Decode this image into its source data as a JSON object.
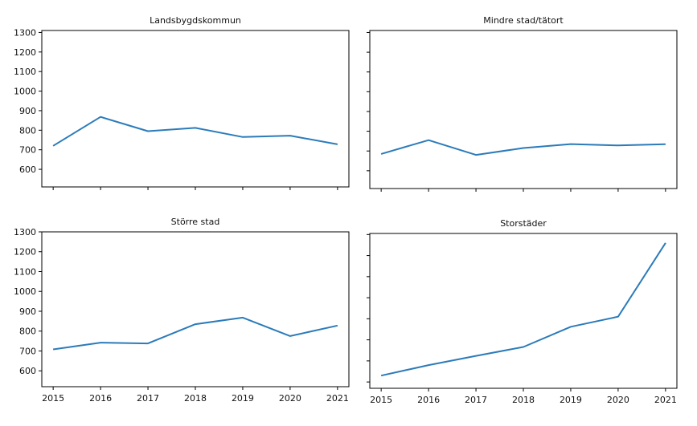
{
  "chart_data": [
    {
      "type": "line",
      "title": "Landsbygdskommun",
      "x": [
        2015,
        2016,
        2017,
        2018,
        2019,
        2020,
        2021
      ],
      "series": [
        {
          "values": [
            720,
            868,
            795,
            812,
            765,
            772,
            728
          ]
        }
      ],
      "yticks": [
        600,
        700,
        800,
        900,
        1000,
        1100,
        1200,
        1300
      ],
      "ylim": [
        510,
        1310
      ],
      "show_y_labels": true,
      "show_x_labels": false,
      "color": "#2b7bba"
    },
    {
      "type": "line",
      "title": "Mindre stad/tätort",
      "x": [
        2015,
        2016,
        2017,
        2018,
        2019,
        2020,
        2021
      ],
      "series": [
        {
          "values": [
            685,
            755,
            680,
            715,
            735,
            728,
            734
          ]
        }
      ],
      "yticks": [
        600,
        700,
        800,
        900,
        1000,
        1100,
        1200,
        1300
      ],
      "ylim": [
        510,
        1310
      ],
      "show_y_labels": false,
      "show_x_labels": false,
      "color": "#2b7bba"
    },
    {
      "type": "line",
      "title": "Större stad",
      "x": [
        2015,
        2016,
        2017,
        2018,
        2019,
        2020,
        2021
      ],
      "series": [
        {
          "values": [
            708,
            742,
            738,
            835,
            868,
            775,
            828
          ]
        }
      ],
      "yticks": [
        600,
        700,
        800,
        900,
        1000,
        1100,
        1200,
        1300
      ],
      "ylim": [
        520,
        1300
      ],
      "show_y_labels": true,
      "show_x_labels": true,
      "color": "#2b7bba"
    },
    {
      "type": "line",
      "title": "Storstäder",
      "x": [
        2015,
        2016,
        2017,
        2018,
        2019,
        2020,
        2021
      ],
      "series": [
        {
          "values": [
            630,
            680,
            724,
            766,
            862,
            910,
            1260
          ]
        }
      ],
      "yticks": [
        600,
        700,
        800,
        900,
        1000,
        1100,
        1200,
        1300
      ],
      "ylim": [
        570,
        1305
      ],
      "show_y_labels": false,
      "show_x_labels": true,
      "color": "#2b7bba"
    }
  ]
}
